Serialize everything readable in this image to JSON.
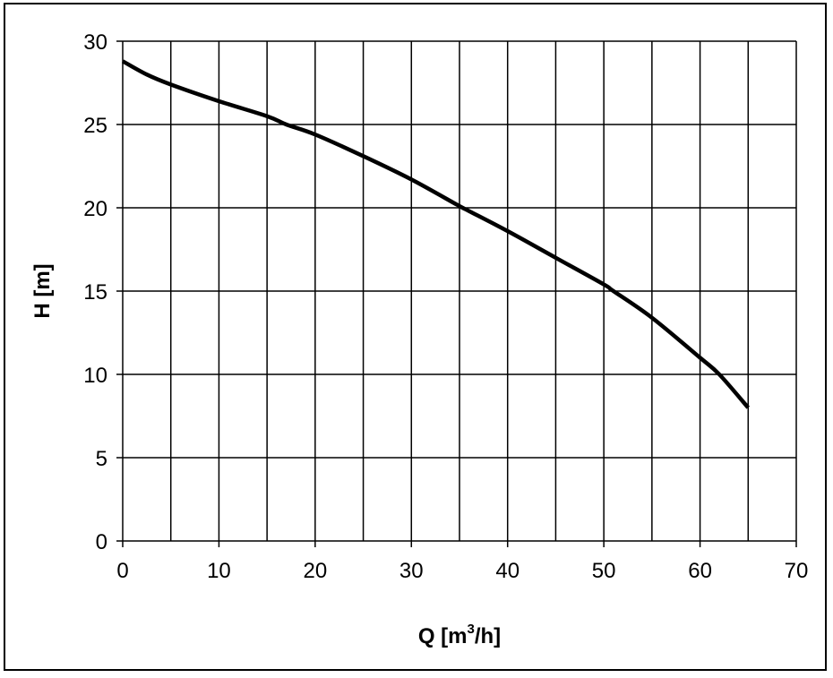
{
  "chart_data": {
    "type": "line",
    "xlabel_parts": {
      "before": "Q [m",
      "sup": "3",
      "after": "/h]"
    },
    "ylabel": "H [m]",
    "xlim": [
      0,
      70
    ],
    "ylim": [
      0,
      30
    ],
    "x_ticks": [
      0,
      10,
      20,
      30,
      40,
      50,
      60,
      70
    ],
    "y_ticks": [
      0,
      5,
      10,
      15,
      20,
      25,
      30
    ],
    "x_tick_labels": [
      "0",
      "10",
      "20",
      "30",
      "40",
      "50",
      "60",
      "70"
    ],
    "y_tick_labels": [
      "0",
      "5",
      "10",
      "15",
      "20",
      "25",
      "30"
    ],
    "grid": true,
    "grid_x_step": 5,
    "grid_y_step": 5,
    "legend": "none",
    "series": [
      {
        "color": "#000000",
        "x": [
          0,
          2.5,
          5,
          10,
          15,
          17,
          20,
          25,
          30,
          35,
          36,
          40,
          45,
          50,
          51,
          55,
          60,
          62,
          65
        ],
        "y": [
          28.8,
          28.0,
          27.4,
          26.4,
          25.5,
          25.0,
          24.4,
          23.1,
          21.7,
          20.1,
          19.8,
          18.6,
          17.0,
          15.4,
          15.0,
          13.4,
          11.0,
          10.0,
          8.0
        ]
      }
    ]
  }
}
